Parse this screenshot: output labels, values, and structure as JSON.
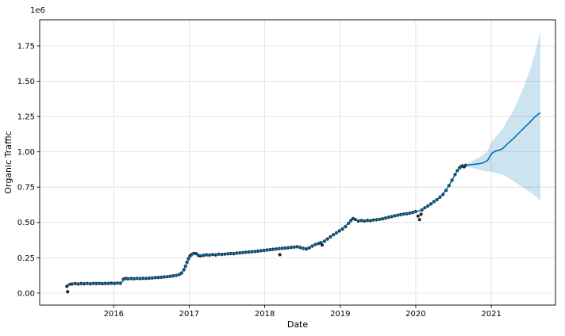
{
  "chart_data": {
    "type": "line",
    "title": "",
    "xlabel": "Date",
    "ylabel": "Organic Traffic",
    "y_offset_text": "1e6",
    "xlim": [
      2015.02,
      2021.85
    ],
    "ylim": [
      -0.085,
      1.935
    ],
    "x_ticks": [
      2016,
      2017,
      2018,
      2019,
      2020,
      2021
    ],
    "x_tick_labels": [
      "2016",
      "2017",
      "2018",
      "2019",
      "2020",
      "2021"
    ],
    "y_ticks": [
      0.0,
      0.25,
      0.5,
      0.75,
      1.0,
      1.25,
      1.5,
      1.75
    ],
    "y_tick_labels": [
      "0.00",
      "0.25",
      "0.50",
      "0.75",
      "1.00",
      "1.25",
      "1.50",
      "1.75"
    ],
    "grid": true,
    "legend": false,
    "colors": {
      "observations": "#000000",
      "forecast_line": "#0072B2",
      "uncertainty_band": "#0072B2",
      "band_alpha": 0.2,
      "grid": "#dddddd",
      "background": "#ffffff"
    },
    "series": [
      {
        "name": "observations",
        "type": "scatter",
        "color": "#000000",
        "points": [
          [
            2015.38,
            0.048
          ],
          [
            2015.39,
            0.01
          ],
          [
            2015.42,
            0.062
          ],
          [
            2015.45,
            0.065
          ],
          [
            2015.49,
            0.067
          ],
          [
            2015.53,
            0.064
          ],
          [
            2015.57,
            0.067
          ],
          [
            2015.61,
            0.066
          ],
          [
            2015.65,
            0.068
          ],
          [
            2015.69,
            0.066
          ],
          [
            2015.73,
            0.068
          ],
          [
            2015.77,
            0.067
          ],
          [
            2015.81,
            0.069
          ],
          [
            2015.85,
            0.067
          ],
          [
            2015.89,
            0.069
          ],
          [
            2015.93,
            0.068
          ],
          [
            2015.97,
            0.07
          ],
          [
            2016.01,
            0.069
          ],
          [
            2016.05,
            0.071
          ],
          [
            2016.09,
            0.07
          ],
          [
            2016.13,
            0.098
          ],
          [
            2016.16,
            0.104
          ],
          [
            2016.19,
            0.101
          ],
          [
            2016.23,
            0.103
          ],
          [
            2016.27,
            0.102
          ],
          [
            2016.31,
            0.104
          ],
          [
            2016.35,
            0.103
          ],
          [
            2016.39,
            0.105
          ],
          [
            2016.43,
            0.104
          ],
          [
            2016.47,
            0.106
          ],
          [
            2016.51,
            0.107
          ],
          [
            2016.55,
            0.109
          ],
          [
            2016.59,
            0.111
          ],
          [
            2016.63,
            0.112
          ],
          [
            2016.67,
            0.114
          ],
          [
            2016.71,
            0.116
          ],
          [
            2016.75,
            0.119
          ],
          [
            2016.79,
            0.122
          ],
          [
            2016.83,
            0.126
          ],
          [
            2016.87,
            0.132
          ],
          [
            2016.9,
            0.142
          ],
          [
            2016.93,
            0.165
          ],
          [
            2016.95,
            0.19
          ],
          [
            2016.97,
            0.218
          ],
          [
            2016.99,
            0.243
          ],
          [
            2017.01,
            0.262
          ],
          [
            2017.03,
            0.272
          ],
          [
            2017.06,
            0.281
          ],
          [
            2017.09,
            0.279
          ],
          [
            2017.12,
            0.268
          ],
          [
            2017.15,
            0.264
          ],
          [
            2017.19,
            0.268
          ],
          [
            2017.23,
            0.271
          ],
          [
            2017.27,
            0.269
          ],
          [
            2017.31,
            0.273
          ],
          [
            2017.35,
            0.271
          ],
          [
            2017.39,
            0.275
          ],
          [
            2017.43,
            0.274
          ],
          [
            2017.47,
            0.276
          ],
          [
            2017.51,
            0.278
          ],
          [
            2017.55,
            0.28
          ],
          [
            2017.59,
            0.279
          ],
          [
            2017.63,
            0.283
          ],
          [
            2017.67,
            0.285
          ],
          [
            2017.71,
            0.287
          ],
          [
            2017.75,
            0.289
          ],
          [
            2017.79,
            0.291
          ],
          [
            2017.83,
            0.293
          ],
          [
            2017.87,
            0.295
          ],
          [
            2017.91,
            0.297
          ],
          [
            2017.95,
            0.3
          ],
          [
            2017.99,
            0.302
          ],
          [
            2018.03,
            0.305
          ],
          [
            2018.07,
            0.307
          ],
          [
            2018.11,
            0.31
          ],
          [
            2018.15,
            0.312
          ],
          [
            2018.19,
            0.315
          ],
          [
            2018.2,
            0.272
          ],
          [
            2018.23,
            0.317
          ],
          [
            2018.27,
            0.319
          ],
          [
            2018.31,
            0.321
          ],
          [
            2018.35,
            0.324
          ],
          [
            2018.39,
            0.326
          ],
          [
            2018.43,
            0.328
          ],
          [
            2018.47,
            0.324
          ],
          [
            2018.51,
            0.317
          ],
          [
            2018.55,
            0.313
          ],
          [
            2018.59,
            0.321
          ],
          [
            2018.63,
            0.333
          ],
          [
            2018.67,
            0.344
          ],
          [
            2018.71,
            0.351
          ],
          [
            2018.74,
            0.357
          ],
          [
            2018.76,
            0.341
          ],
          [
            2018.79,
            0.367
          ],
          [
            2018.83,
            0.383
          ],
          [
            2018.87,
            0.398
          ],
          [
            2018.91,
            0.413
          ],
          [
            2018.95,
            0.427
          ],
          [
            2018.99,
            0.44
          ],
          [
            2019.03,
            0.454
          ],
          [
            2019.07,
            0.471
          ],
          [
            2019.11,
            0.494
          ],
          [
            2019.14,
            0.513
          ],
          [
            2019.17,
            0.527
          ],
          [
            2019.2,
            0.521
          ],
          [
            2019.24,
            0.511
          ],
          [
            2019.28,
            0.514
          ],
          [
            2019.32,
            0.511
          ],
          [
            2019.36,
            0.515
          ],
          [
            2019.4,
            0.513
          ],
          [
            2019.44,
            0.517
          ],
          [
            2019.48,
            0.519
          ],
          [
            2019.52,
            0.522
          ],
          [
            2019.56,
            0.526
          ],
          [
            2019.6,
            0.531
          ],
          [
            2019.64,
            0.537
          ],
          [
            2019.68,
            0.542
          ],
          [
            2019.72,
            0.547
          ],
          [
            2019.76,
            0.551
          ],
          [
            2019.8,
            0.555
          ],
          [
            2019.84,
            0.559
          ],
          [
            2019.88,
            0.562
          ],
          [
            2019.92,
            0.566
          ],
          [
            2019.96,
            0.571
          ],
          [
            2020.0,
            0.577
          ],
          [
            2020.03,
            0.545
          ],
          [
            2020.05,
            0.52
          ],
          [
            2020.07,
            0.558
          ],
          [
            2020.08,
            0.589
          ],
          [
            2020.12,
            0.604
          ],
          [
            2020.16,
            0.617
          ],
          [
            2020.2,
            0.631
          ],
          [
            2020.24,
            0.647
          ],
          [
            2020.28,
            0.661
          ],
          [
            2020.32,
            0.679
          ],
          [
            2020.36,
            0.699
          ],
          [
            2020.4,
            0.727
          ],
          [
            2020.44,
            0.761
          ],
          [
            2020.48,
            0.799
          ],
          [
            2020.52,
            0.839
          ],
          [
            2020.55,
            0.867
          ],
          [
            2020.58,
            0.887
          ],
          [
            2020.6,
            0.896
          ],
          [
            2020.62,
            0.901
          ],
          [
            2020.64,
            0.894
          ],
          [
            2020.66,
            0.904
          ]
        ]
      },
      {
        "name": "forecast",
        "type": "line",
        "color": "#0072B2",
        "points": [
          [
            2015.38,
            0.058
          ],
          [
            2015.45,
            0.066
          ],
          [
            2015.7,
            0.068
          ],
          [
            2016.0,
            0.07
          ],
          [
            2016.1,
            0.072
          ],
          [
            2016.14,
            0.1
          ],
          [
            2016.3,
            0.103
          ],
          [
            2016.5,
            0.107
          ],
          [
            2016.65,
            0.113
          ],
          [
            2016.78,
            0.121
          ],
          [
            2016.88,
            0.134
          ],
          [
            2016.93,
            0.162
          ],
          [
            2017.0,
            0.252
          ],
          [
            2017.06,
            0.28
          ],
          [
            2017.12,
            0.269
          ],
          [
            2017.2,
            0.269
          ],
          [
            2017.3,
            0.272
          ],
          [
            2017.45,
            0.276
          ],
          [
            2017.6,
            0.281
          ],
          [
            2017.75,
            0.289
          ],
          [
            2017.9,
            0.297
          ],
          [
            2018.05,
            0.306
          ],
          [
            2018.2,
            0.315
          ],
          [
            2018.35,
            0.324
          ],
          [
            2018.45,
            0.327
          ],
          [
            2018.52,
            0.316
          ],
          [
            2018.6,
            0.326
          ],
          [
            2018.7,
            0.35
          ],
          [
            2018.8,
            0.372
          ],
          [
            2018.9,
            0.408
          ],
          [
            2019.0,
            0.444
          ],
          [
            2019.08,
            0.48
          ],
          [
            2019.14,
            0.512
          ],
          [
            2019.18,
            0.526
          ],
          [
            2019.25,
            0.512
          ],
          [
            2019.35,
            0.513
          ],
          [
            2019.45,
            0.516
          ],
          [
            2019.55,
            0.524
          ],
          [
            2019.65,
            0.538
          ],
          [
            2019.75,
            0.55
          ],
          [
            2019.85,
            0.559
          ],
          [
            2019.95,
            0.569
          ],
          [
            2020.05,
            0.583
          ],
          [
            2020.12,
            0.602
          ],
          [
            2020.2,
            0.63
          ],
          [
            2020.3,
            0.668
          ],
          [
            2020.4,
            0.728
          ],
          [
            2020.48,
            0.797
          ],
          [
            2020.55,
            0.866
          ],
          [
            2020.6,
            0.895
          ],
          [
            2020.66,
            0.904
          ],
          [
            2020.72,
            0.908
          ],
          [
            2020.8,
            0.913
          ],
          [
            2020.88,
            0.92
          ],
          [
            2020.95,
            0.938
          ],
          [
            2021.0,
            0.985
          ],
          [
            2021.05,
            1.005
          ],
          [
            2021.1,
            1.012
          ],
          [
            2021.15,
            1.022
          ],
          [
            2021.2,
            1.05
          ],
          [
            2021.3,
            1.098
          ],
          [
            2021.4,
            1.152
          ],
          [
            2021.5,
            1.204
          ],
          [
            2021.58,
            1.25
          ],
          [
            2021.65,
            1.278
          ]
        ]
      },
      {
        "name": "uncertainty",
        "type": "band",
        "color": "#0072B2",
        "alpha": 0.2,
        "points": [
          [
            2020.66,
            0.897,
            0.912
          ],
          [
            2020.72,
            0.889,
            0.928
          ],
          [
            2020.8,
            0.878,
            0.95
          ],
          [
            2020.88,
            0.868,
            0.975
          ],
          [
            2020.95,
            0.862,
            1.005
          ],
          [
            2021.0,
            0.858,
            1.07
          ],
          [
            2021.05,
            0.852,
            1.1
          ],
          [
            2021.1,
            0.845,
            1.13
          ],
          [
            2021.15,
            0.838,
            1.16
          ],
          [
            2021.2,
            0.825,
            1.21
          ],
          [
            2021.3,
            0.79,
            1.3
          ],
          [
            2021.4,
            0.755,
            1.42
          ],
          [
            2021.5,
            0.72,
            1.56
          ],
          [
            2021.58,
            0.69,
            1.7
          ],
          [
            2021.65,
            0.655,
            1.85
          ]
        ]
      }
    ]
  }
}
